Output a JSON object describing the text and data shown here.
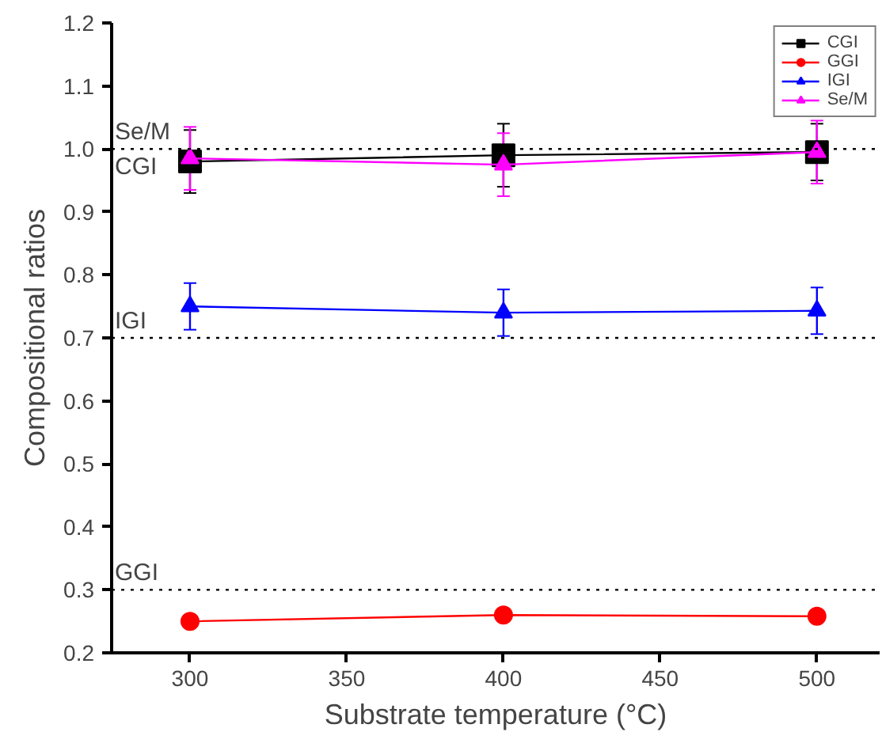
{
  "chart_data": {
    "type": "line",
    "xlabel": "Substrate temperature (°C)",
    "ylabel": "Compositional ratios",
    "x": [
      300,
      400,
      500
    ],
    "series": [
      {
        "name": "CGI",
        "color": "#000000",
        "marker": "square",
        "values": [
          0.98,
          0.99,
          0.995
        ],
        "errors": [
          0.05,
          0.05,
          0.045
        ]
      },
      {
        "name": "GGI",
        "color": "#ff0000",
        "marker": "circle",
        "values": [
          0.25,
          0.26,
          0.258
        ],
        "errors": [
          0.01,
          0.01,
          0.01
        ]
      },
      {
        "name": "IGI",
        "color": "#0000ff",
        "marker": "triangle",
        "values": [
          0.75,
          0.74,
          0.743
        ],
        "errors": [
          0.037,
          0.037,
          0.037
        ]
      },
      {
        "name": "Se/M",
        "color": "#ff00ff",
        "marker": "triangle",
        "values": [
          0.985,
          0.975,
          0.995
        ],
        "errors": [
          0.05,
          0.05,
          0.05
        ]
      }
    ],
    "ref_lines": [
      {
        "axis": "y",
        "value": 1.0,
        "label": "Se/M",
        "line_style": "dotted",
        "color": "#000000"
      },
      {
        "axis": "y",
        "value": 0.7,
        "label": "IGI",
        "line_style": "dotted",
        "color": "#000000"
      },
      {
        "axis": "y",
        "value": 0.3,
        "label": "GGI",
        "line_style": "dotted",
        "color": "#000000"
      }
    ],
    "annotations": [
      {
        "text": "CGI",
        "x": 275,
        "y": 1.0
      }
    ],
    "xlim": [
      275,
      520
    ],
    "xticks": [
      300,
      350,
      400,
      450,
      500
    ],
    "ylim": [
      0.2,
      1.2
    ],
    "yticks": [
      0.2,
      0.3,
      0.4,
      0.5,
      0.6,
      0.7,
      0.8,
      0.9,
      {
        "value": 1.0,
        "label": "1.0"
      },
      1.1,
      1.2
    ],
    "grid": false,
    "legend": "top right",
    "line_style": "solid"
  }
}
